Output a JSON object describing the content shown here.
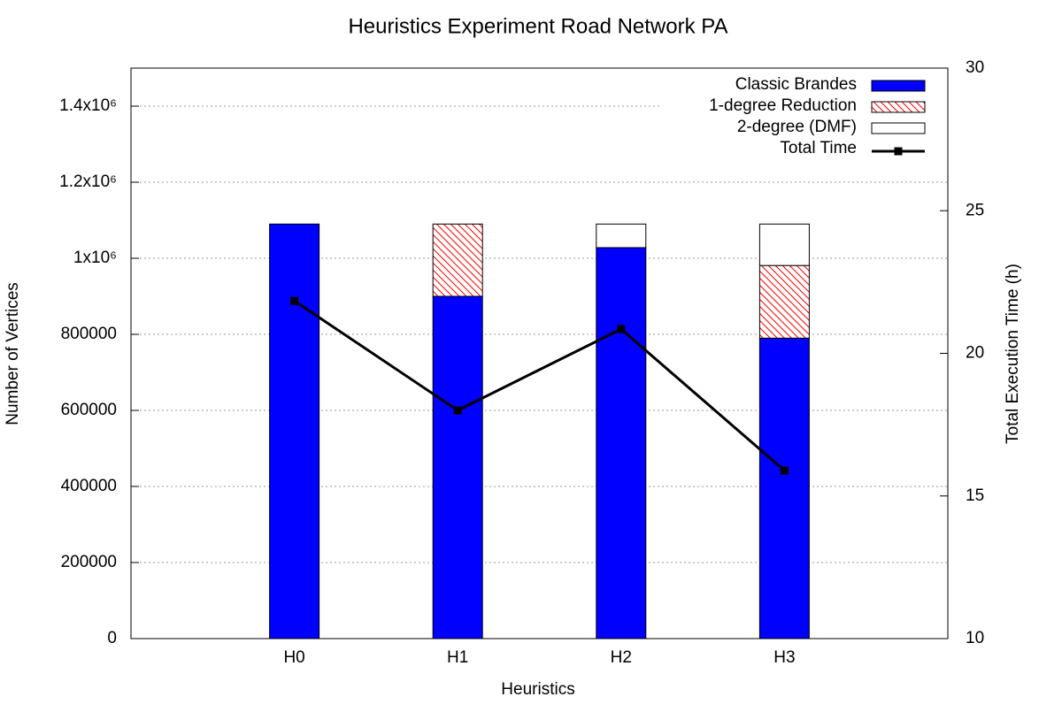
{
  "chart_data": {
    "type": "bar",
    "stacked": true,
    "title": "Heuristics Experiment Road Network PA",
    "x_label": "Heuristics",
    "y_label": "Number of Vertices",
    "y2_label": "Total Execution Time (h)",
    "categories": [
      "H0",
      "H1",
      "H2",
      "H3"
    ],
    "series": [
      {
        "name": "Classic Brandes",
        "color": "#0000ff",
        "values": [
          1090000,
          900000,
          1028000,
          790000
        ]
      },
      {
        "name": "1-degree Reduction",
        "color": "#ff0000",
        "fill": "hatch",
        "values": [
          0,
          190000,
          0,
          191000
        ]
      },
      {
        "name": "2-degree (DMF)",
        "color": "#ffffff",
        "values": [
          0,
          0,
          62000,
          109000
        ]
      },
      {
        "name": "Total Time",
        "color": "#000000",
        "type": "line",
        "axis": "y2",
        "values": [
          21.84,
          18.0,
          20.85,
          15.89
        ]
      }
    ],
    "ylim": [
      0,
      1500000
    ],
    "yticks": [
      0,
      200000,
      400000,
      600000,
      800000,
      {
        "value": 1000000,
        "label": "1x10⁶"
      },
      {
        "value": 1200000,
        "label": "1.2x10⁶"
      },
      {
        "value": 1400000,
        "label": "1.4x10⁶"
      }
    ],
    "y2lim": [
      10,
      30
    ],
    "y2ticks": [
      10,
      15,
      20,
      25,
      30
    ],
    "grid": true,
    "legend": "top-right"
  }
}
